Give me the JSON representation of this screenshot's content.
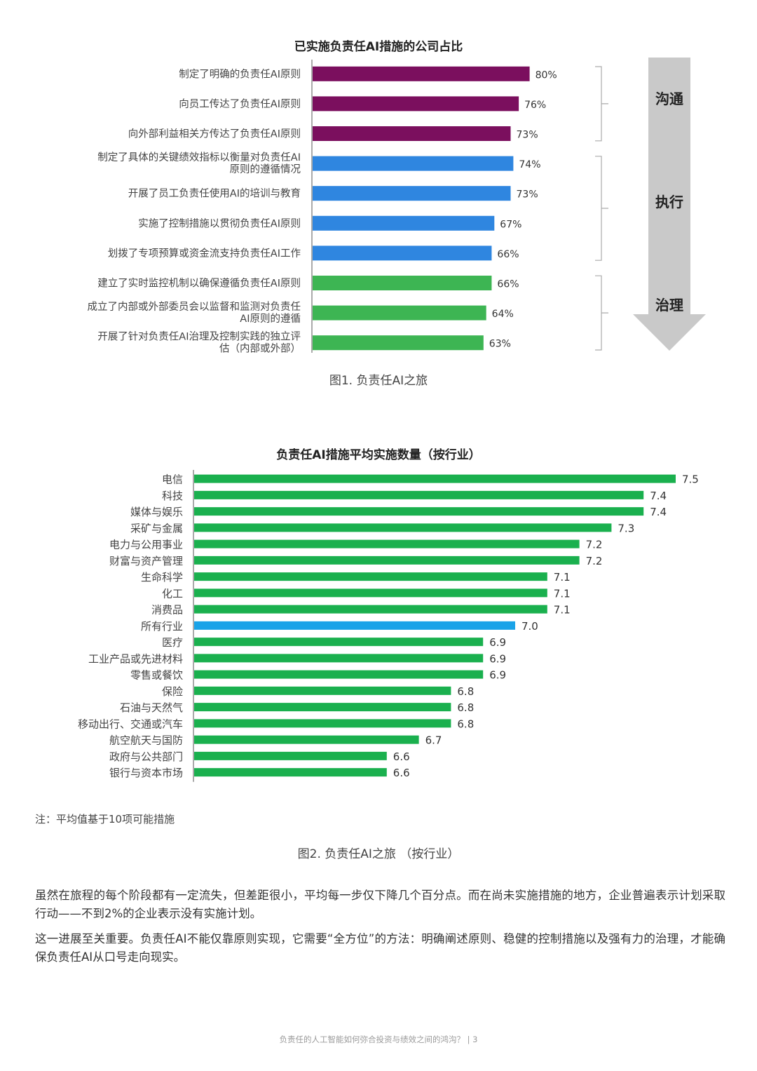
{
  "chart_data": [
    {
      "type": "bar",
      "orientation": "horizontal",
      "title": "已实施负责任AI措施的公司占比",
      "caption": "图1. 负责任AI之旅",
      "xlim": [
        0,
        100
      ],
      "categories": [
        "制定了明确的负责任AI原则",
        "向员工传达了负责任AI原则",
        "向外部利益相关方传达了负责任AI原则",
        "制定了具体的关键绩效指标以衡量对负责任AI原则的遵循情况",
        "开展了员工负责任使用AI的培训与教育",
        "实施了控制措施以贯彻负责任AI原则",
        "划拨了专项预算或资金流支持负责任AI工作",
        "建立了实时监控机制以确保遵循负责任AI原则",
        "成立了内部或外部委员会以监督和监测对负责任AI原则的遵循",
        "开展了针对负责任AI治理及控制实践的独立评估（内部或外部）"
      ],
      "category_lines": [
        [
          "制定了明确的负责任AI原则"
        ],
        [
          "向员工传达了负责任AI原则"
        ],
        [
          "向外部利益相关方传达了负责任AI原则"
        ],
        [
          "制定了具体的关键绩效指标以衡量对负责任AI",
          "原则的遵循情况"
        ],
        [
          "开展了员工负责任使用AI的培训与教育"
        ],
        [
          "实施了控制措施以贯彻负责任AI原则"
        ],
        [
          "划拨了专项预算或资金流支持负责任AI工作"
        ],
        [
          "建立了实时监控机制以确保遵循负责任AI原则"
        ],
        [
          "成立了内部或外部委员会以监督和监测对负责任",
          "AI原则的遵循"
        ],
        [
          "开展了针对负责任AI治理及控制实践的独立评",
          "估（内部或外部）"
        ]
      ],
      "values": [
        80,
        76,
        73,
        74,
        73,
        67,
        66,
        66,
        64,
        63
      ],
      "value_labels": [
        "80%",
        "76%",
        "73%",
        "74%",
        "73%",
        "67%",
        "66%",
        "66%",
        "64%",
        "63%"
      ],
      "groups": [
        {
          "name": "沟通",
          "start": 0,
          "end": 2,
          "color": "#7b0f5e"
        },
        {
          "name": "执行",
          "start": 3,
          "end": 6,
          "color": "#2f86e0"
        },
        {
          "name": "治理",
          "start": 7,
          "end": 9,
          "color": "#3db553"
        }
      ]
    },
    {
      "type": "bar",
      "orientation": "horizontal",
      "title": "负责任AI措施平均实施数量（按行业）",
      "caption": "图2. 负责任AI之旅 （按行业）",
      "xlim": [
        0,
        7.5
      ],
      "categories": [
        "电信",
        "科技",
        "媒体与娱乐",
        "采矿与金属",
        "电力与公用事业",
        "财富与资产管理",
        "生命科学",
        "化工",
        "消费品",
        "所有行业",
        "医疗",
        "工业产品或先进材料",
        "零售或餐饮",
        "保险",
        "石油与天然气",
        "移动出行、交通或汽车",
        "航空航天与国防",
        "政府与公共部门",
        "银行与资本市场"
      ],
      "values": [
        7.5,
        7.4,
        7.4,
        7.3,
        7.2,
        7.2,
        7.1,
        7.1,
        7.1,
        7.0,
        6.9,
        6.9,
        6.9,
        6.8,
        6.8,
        6.8,
        6.7,
        6.6,
        6.6
      ],
      "value_labels": [
        "7.5",
        "7.4",
        "7.4",
        "7.3",
        "7.2",
        "7.2",
        "7.1",
        "7.1",
        "7.1",
        "7.0",
        "6.9",
        "6.9",
        "6.9",
        "6.8",
        "6.8",
        "6.8",
        "6.7",
        "6.6",
        "6.6"
      ],
      "highlight": "所有行业",
      "colors": {
        "default": "#1ab04e",
        "highlight": "#1aa3e8"
      }
    }
  ],
  "page": {
    "note": "注：平均值基于10项可能措施",
    "paragraphs": [
      "虽然在旅程的每个阶段都有一定流失，但差距很小，平均每一步仅下降几个百分点。而在尚未实施措施的地方，企业普遍表示计划采取行动——不到2%的企业表示没有实施计划。",
      "这一进展至关重要。负责任AI不能仅靠原则实现，它需要“全方位”的方法：明确阐述原则、稳健的控制措施以及强有力的治理，才能确保负责任AI从口号走向现实。"
    ],
    "footer": "负责任的人工智能如何弥合投资与绩效之间的鸿沟？ | 3"
  },
  "colors": {
    "arrow": "#c9c9c9",
    "arrow_label": "#222222",
    "bracket": "#aaaaaa",
    "axis": "#555555"
  }
}
